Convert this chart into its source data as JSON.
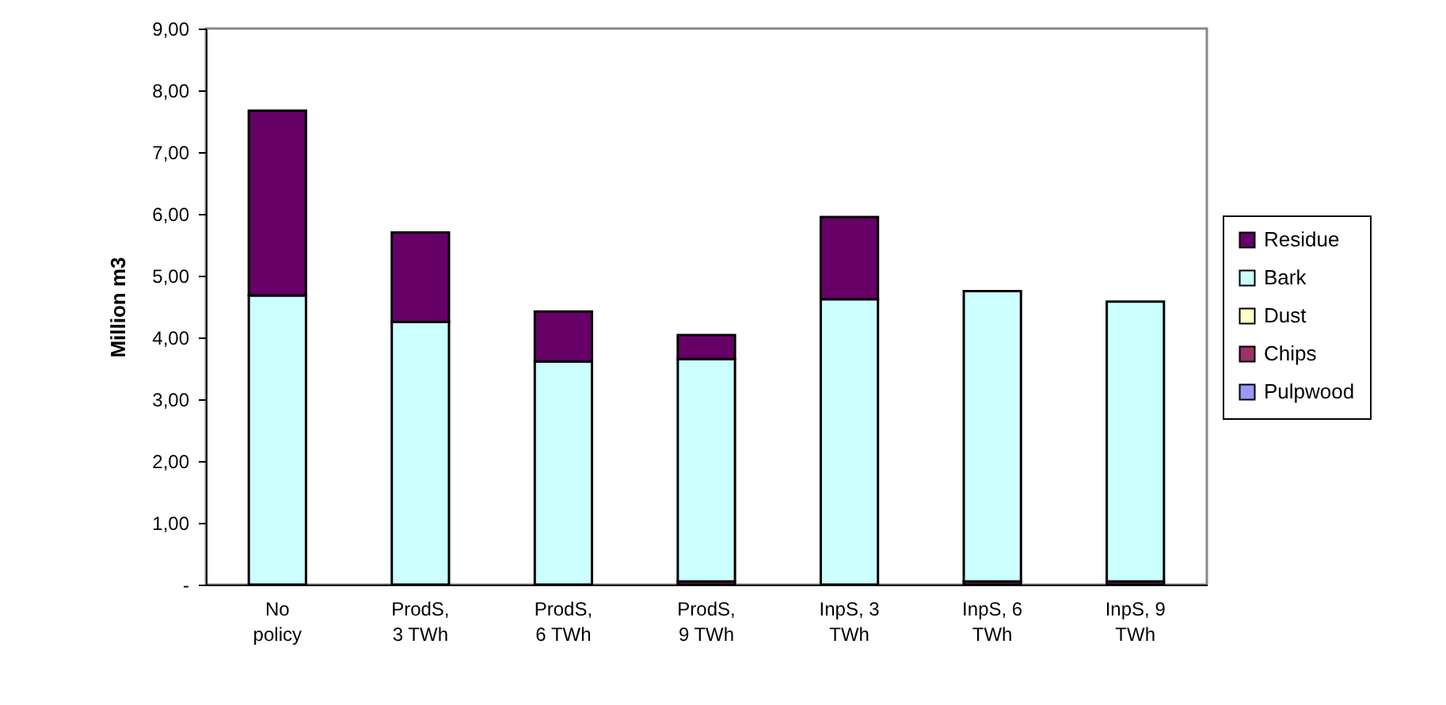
{
  "chart_data": {
    "type": "bar",
    "stacked": true,
    "ylabel": "Million m3",
    "categories": [
      "No policy",
      "ProdS, 3 TWh",
      "ProdS, 6 TWh",
      "ProdS, 9 TWh",
      "InpS, 3 TWh",
      "InpS, 6 TWh",
      "InpS, 9 TWh"
    ],
    "series": [
      {
        "name": "Pulpwood",
        "color": "#9999ff",
        "values": [
          null,
          null,
          null,
          null,
          null,
          null,
          null
        ]
      },
      {
        "name": "Chips",
        "color": "#993366",
        "values": [
          null,
          null,
          null,
          0.05,
          null,
          0.05,
          0.05
        ]
      },
      {
        "name": "Dust",
        "color": "#ffffcc",
        "values": [
          null,
          null,
          null,
          null,
          null,
          null,
          null
        ]
      },
      {
        "name": "Bark",
        "color": "#ccffff",
        "values": [
          4.68,
          4.25,
          3.61,
          3.6,
          4.62,
          4.7,
          4.53
        ]
      },
      {
        "name": "Residue",
        "color": "#660066",
        "values": [
          2.99,
          1.45,
          0.81,
          0.39,
          1.33,
          null,
          null
        ]
      }
    ],
    "ylim": [
      0,
      9
    ],
    "yticks": [
      {
        "value": 0,
        "label": "-"
      },
      {
        "value": 1,
        "label": "1,00"
      },
      {
        "value": 2,
        "label": "2,00"
      },
      {
        "value": 3,
        "label": "3,00"
      },
      {
        "value": 4,
        "label": "4,00"
      },
      {
        "value": 5,
        "label": "5,00"
      },
      {
        "value": 6,
        "label": "6,00"
      },
      {
        "value": 7,
        "label": "7,00"
      },
      {
        "value": 8,
        "label": "8,00"
      },
      {
        "value": 9,
        "label": "9,00"
      }
    ],
    "legend": "right"
  }
}
